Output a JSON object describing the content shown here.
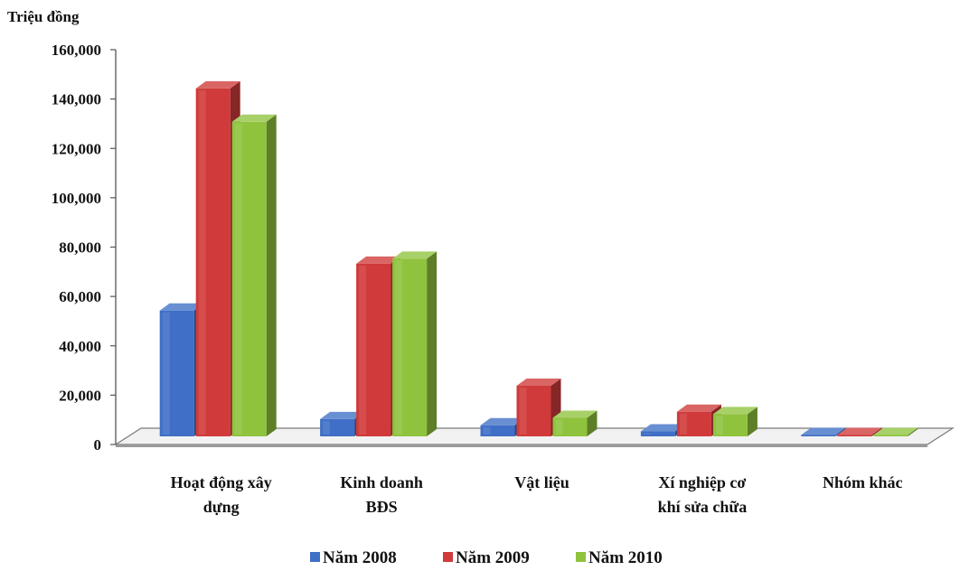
{
  "chart_data": {
    "type": "bar",
    "title": "",
    "ylabel": "Triệu đồng",
    "xlabel": "",
    "ylim": [
      0,
      160000
    ],
    "yticks": [
      "0",
      "20,000",
      "40,000",
      "60,000",
      "80,000",
      "100,000",
      "120,000",
      "140,000",
      "160,000"
    ],
    "grid": false,
    "legend_position": "bottom",
    "categories": [
      [
        "Hoạt động xây",
        "dựng"
      ],
      [
        "Kinh doanh",
        "BĐS"
      ],
      [
        "Vật liệu"
      ],
      [
        "Xí nghiệp cơ",
        "khí sửa chữa"
      ],
      [
        "Nhóm khác"
      ]
    ],
    "series": [
      {
        "name": "Năm 2008",
        "color": "#3F6FC6",
        "values": [
          51000,
          7000,
          4500,
          2000,
          300
        ]
      },
      {
        "name": "Năm 2009",
        "color": "#D03A3A",
        "values": [
          141000,
          70000,
          20500,
          10000,
          500
        ]
      },
      {
        "name": "Năm 2010",
        "color": "#8FC33E",
        "values": [
          127500,
          72000,
          7500,
          9000,
          400
        ]
      }
    ]
  }
}
